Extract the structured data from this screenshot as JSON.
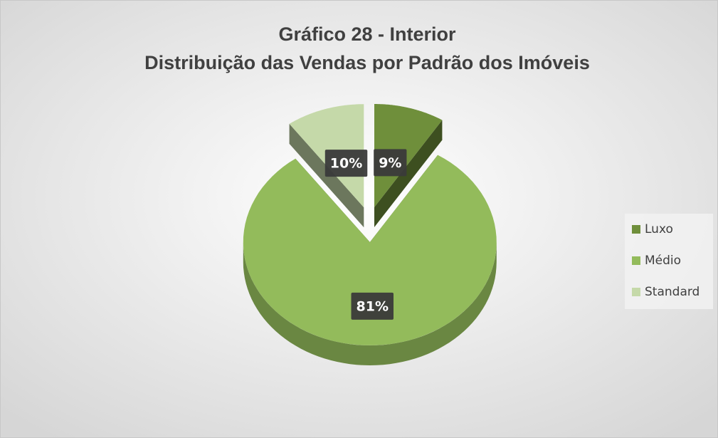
{
  "chart_data": {
    "type": "pie",
    "title": [
      "Gráfico 28 - Interior",
      "Distribuição das Vendas por Padrão dos Imóveis"
    ],
    "categories": [
      "Luxo",
      "Médio",
      "Standard"
    ],
    "values": [
      9,
      81,
      10
    ],
    "value_labels": [
      "9%",
      "81%",
      "10%"
    ],
    "colors": [
      "#6f8f3b",
      "#93bb5b",
      "#c5d9a9"
    ],
    "legend": "right"
  }
}
